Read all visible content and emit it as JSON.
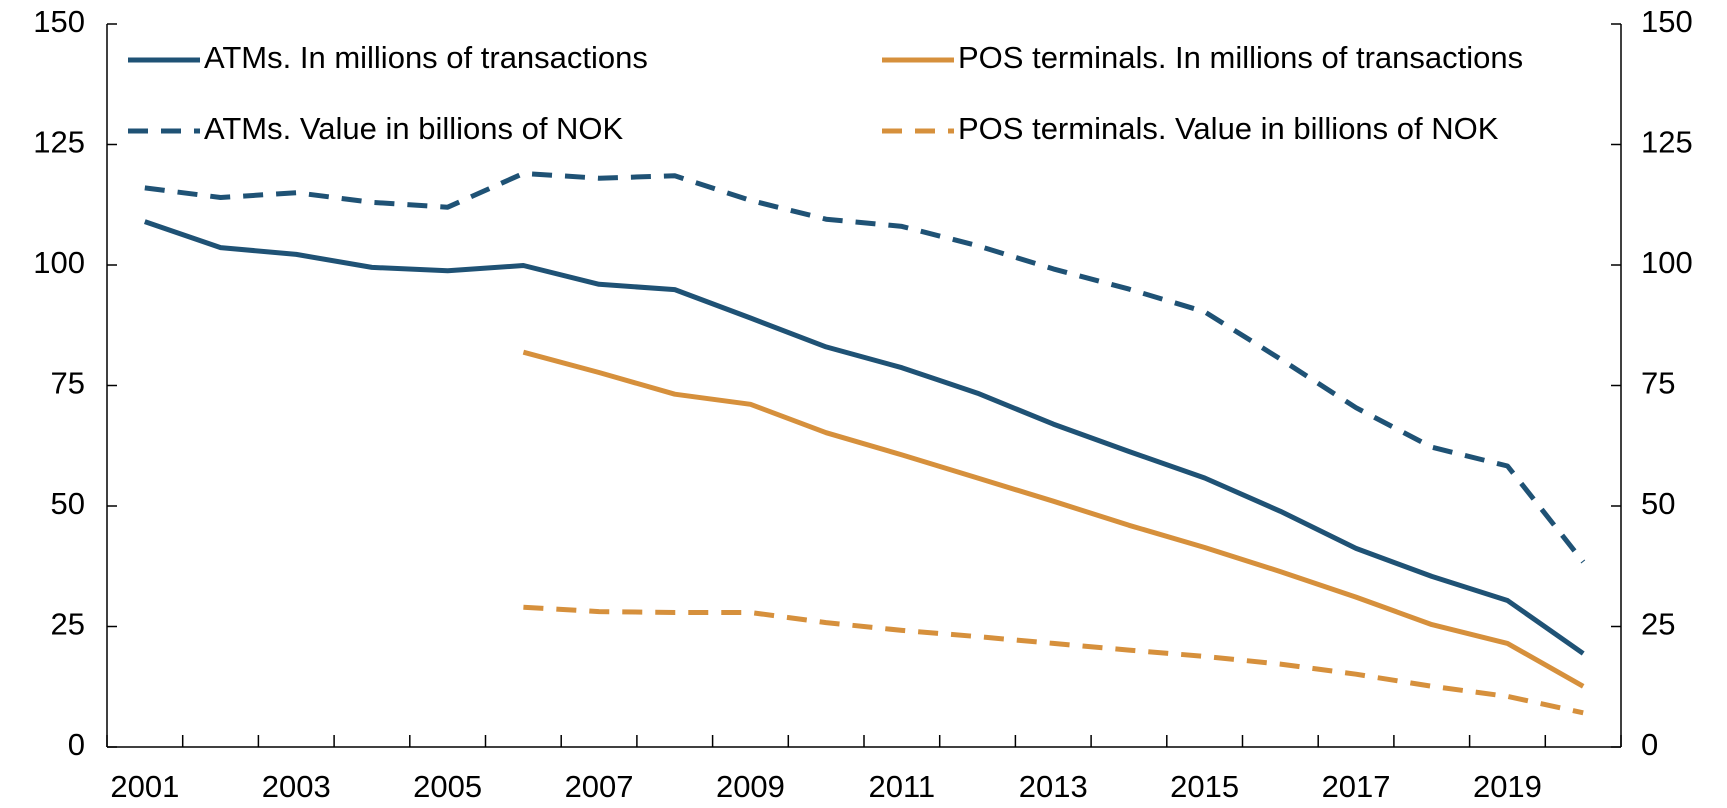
{
  "chart_data": {
    "type": "line",
    "categories": [
      "2001",
      null,
      "2003",
      null,
      "2005",
      null,
      "2007",
      null,
      "2009",
      null,
      "2011",
      null,
      "2013",
      null,
      "2015",
      null,
      "2017",
      null,
      "2019",
      null
    ],
    "series": [
      {
        "name": "ATMs. In millions of transactions",
        "color": "#1f5275",
        "linestyle": "solid",
        "values": [
          109,
          103.6,
          102.2,
          99.5,
          98.8,
          99.9,
          96,
          94.9,
          89,
          83,
          78.7,
          73.4,
          67,
          61.3,
          55.8,
          48.9,
          41.2,
          35.4,
          30.4,
          19.4
        ]
      },
      {
        "name": "POS terminals. In millions of transactions",
        "color": "#d6903c",
        "linestyle": "solid",
        "values": [
          null,
          null,
          null,
          null,
          null,
          81.9,
          77.7,
          73.2,
          71.1,
          65.2,
          60.6,
          55.8,
          51,
          46,
          41.4,
          36.4,
          31.1,
          25.4,
          21.5,
          12.6
        ]
      },
      {
        "name": "ATMs. Value in billions of NOK",
        "color": "#1f5275",
        "linestyle": "dashed",
        "values": [
          116,
          114,
          115,
          113,
          112,
          119,
          118,
          118.5,
          113.4,
          109.5,
          108,
          104,
          99.2,
          95,
          90.3,
          80.5,
          70.4,
          62.2,
          58.3,
          38.4
        ]
      },
      {
        "name": "POS terminals. Value in billions of NOK",
        "color": "#d6903c",
        "linestyle": "dashed",
        "values": [
          null,
          null,
          null,
          null,
          null,
          29,
          28.1,
          27.9,
          27.9,
          25.8,
          24.2,
          22.9,
          21.5,
          20.1,
          18.8,
          17.2,
          15.1,
          12.6,
          10.5,
          7.1
        ]
      }
    ],
    "ylim": [
      0,
      150
    ],
    "yticks": [
      0,
      25,
      50,
      75,
      100,
      125,
      150
    ],
    "y2lim": [
      0,
      150
    ],
    "y2ticks": [
      0,
      25,
      50,
      75,
      100,
      125,
      150
    ],
    "grid": false,
    "legend": "top"
  }
}
